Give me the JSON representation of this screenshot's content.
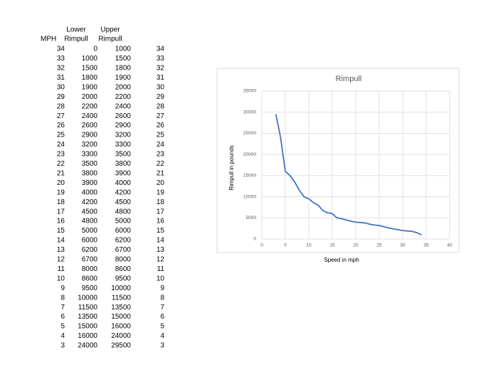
{
  "table": {
    "headers": {
      "mph": "MPH",
      "lower": [
        "Lower",
        "Rimpull"
      ],
      "upper": [
        "Upper",
        "Rimpull"
      ]
    },
    "rows": [
      [
        34,
        0,
        1000,
        34
      ],
      [
        33,
        1000,
        1500,
        33
      ],
      [
        32,
        1500,
        1800,
        32
      ],
      [
        31,
        1800,
        1900,
        31
      ],
      [
        30,
        1900,
        2000,
        30
      ],
      [
        29,
        2000,
        2200,
        29
      ],
      [
        28,
        2200,
        2400,
        28
      ],
      [
        27,
        2400,
        2600,
        27
      ],
      [
        26,
        2600,
        2900,
        26
      ],
      [
        25,
        2900,
        3200,
        25
      ],
      [
        24,
        3200,
        3300,
        24
      ],
      [
        23,
        3300,
        3500,
        23
      ],
      [
        22,
        3500,
        3800,
        22
      ],
      [
        21,
        3800,
        3900,
        21
      ],
      [
        20,
        3900,
        4000,
        20
      ],
      [
        19,
        4000,
        4200,
        19
      ],
      [
        18,
        4200,
        4500,
        18
      ],
      [
        17,
        4500,
        4800,
        17
      ],
      [
        16,
        4800,
        5000,
        16
      ],
      [
        15,
        5000,
        6000,
        15
      ],
      [
        14,
        6000,
        6200,
        14
      ],
      [
        13,
        6200,
        6700,
        13
      ],
      [
        12,
        6700,
        8000,
        12
      ],
      [
        11,
        8000,
        8600,
        11
      ],
      [
        10,
        8600,
        9500,
        10
      ],
      [
        9,
        9500,
        10000,
        9
      ],
      [
        8,
        10000,
        11500,
        8
      ],
      [
        7,
        11500,
        13500,
        7
      ],
      [
        6,
        13500,
        15000,
        6
      ],
      [
        5,
        15000,
        16000,
        5
      ],
      [
        4,
        16000,
        24000,
        4
      ],
      [
        3,
        24000,
        29500,
        3
      ]
    ]
  },
  "chart_data": {
    "type": "line",
    "title": "Rimpull",
    "x_label": "Speed in mph",
    "y_label": "Rimpull in pounds",
    "x": [
      34,
      33,
      32,
      31,
      30,
      29,
      28,
      27,
      26,
      25,
      24,
      23,
      22,
      21,
      20,
      19,
      18,
      17,
      16,
      15,
      14,
      13,
      12,
      11,
      10,
      9,
      8,
      7,
      6,
      5,
      4,
      3
    ],
    "series": [
      {
        "color": "#4472c4",
        "values": [
          1000,
          1500,
          1800,
          1900,
          2000,
          2200,
          2400,
          2600,
          2900,
          3200,
          3300,
          3500,
          3800,
          3900,
          4000,
          4200,
          4500,
          4800,
          5000,
          6000,
          6200,
          6700,
          8000,
          8600,
          9500,
          10000,
          11500,
          13500,
          15000,
          16000,
          24000,
          29500
        ]
      }
    ],
    "xlim": [
      0,
      40
    ],
    "xticks": [
      0,
      5,
      10,
      15,
      20,
      25,
      30,
      35,
      40
    ],
    "ylim": [
      0,
      35000
    ],
    "yticks": [
      0,
      5000,
      10000,
      15000,
      20000,
      25000,
      30000,
      35000
    ],
    "grid": true
  }
}
